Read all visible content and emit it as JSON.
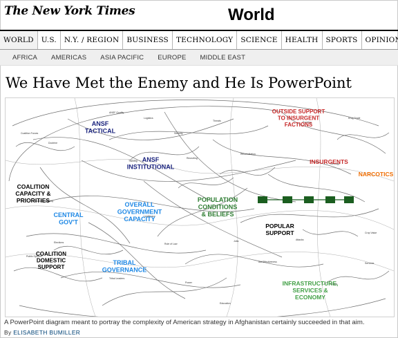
{
  "masthead": {
    "logo": "The New York Times",
    "section": "World"
  },
  "nav": {
    "items": [
      "WORLD",
      "U.S.",
      "N.Y. / REGION",
      "BUSINESS",
      "TECHNOLOGY",
      "SCIENCE",
      "HEALTH",
      "SPORTS",
      "OPINION"
    ],
    "active": "WORLD"
  },
  "subnav": {
    "items": [
      "AFRICA",
      "AMERICAS",
      "ASIA PACIFIC",
      "EUROPE",
      "MIDDLE EAST"
    ]
  },
  "article": {
    "headline": "We Have Met the Enemy and He Is PowerPoint",
    "caption": "A PowerPoint diagram meant to portray the complexity of American strategy in Afghanistan certainly succeeded in that aim.",
    "byline_prefix": "By",
    "author": "ELISABETH BUMILLER"
  },
  "diagram": {
    "clusters": [
      {
        "lines": [
          "ANSF",
          "TACTICAL"
        ],
        "color": "#1a237e"
      },
      {
        "lines": [
          "ANSF",
          "INSTITUTIONAL"
        ],
        "color": "#1a237e"
      },
      {
        "lines": [
          "OUTSIDE SUPPORT",
          "TO INSURGENT",
          "FACTIONS"
        ],
        "color": "#c62828"
      },
      {
        "lines": [
          "INSURGENTS"
        ],
        "color": "#c62828"
      },
      {
        "lines": [
          "NARCOTICS"
        ],
        "color": "#ef6c00"
      },
      {
        "lines": [
          "COALITION",
          "CAPACITY &",
          "PRIORITIES"
        ],
        "color": "#000000"
      },
      {
        "lines": [
          "OVERALL",
          "GOVERNMENT",
          "CAPACITY"
        ],
        "color": "#1e88e5"
      },
      {
        "lines": [
          "CENTRAL",
          "GOV'T"
        ],
        "color": "#1e88e5"
      },
      {
        "lines": [
          "POPULATION",
          "CONDITIONS",
          "& BELIEFS"
        ],
        "color": "#2e7d32"
      },
      {
        "lines": [
          "POPULAR",
          "SUPPORT"
        ],
        "color": "#000000"
      },
      {
        "lines": [
          "COALITION",
          "DOMESTIC",
          "SUPPORT"
        ],
        "color": "#000000"
      },
      {
        "lines": [
          "TRIBAL",
          "GOVERNANCE"
        ],
        "color": "#1e88e5"
      },
      {
        "lines": [
          "INFRASTRUCTURE,",
          "SERVICES &",
          "ECONOMY"
        ],
        "color": "#43a047"
      }
    ]
  }
}
